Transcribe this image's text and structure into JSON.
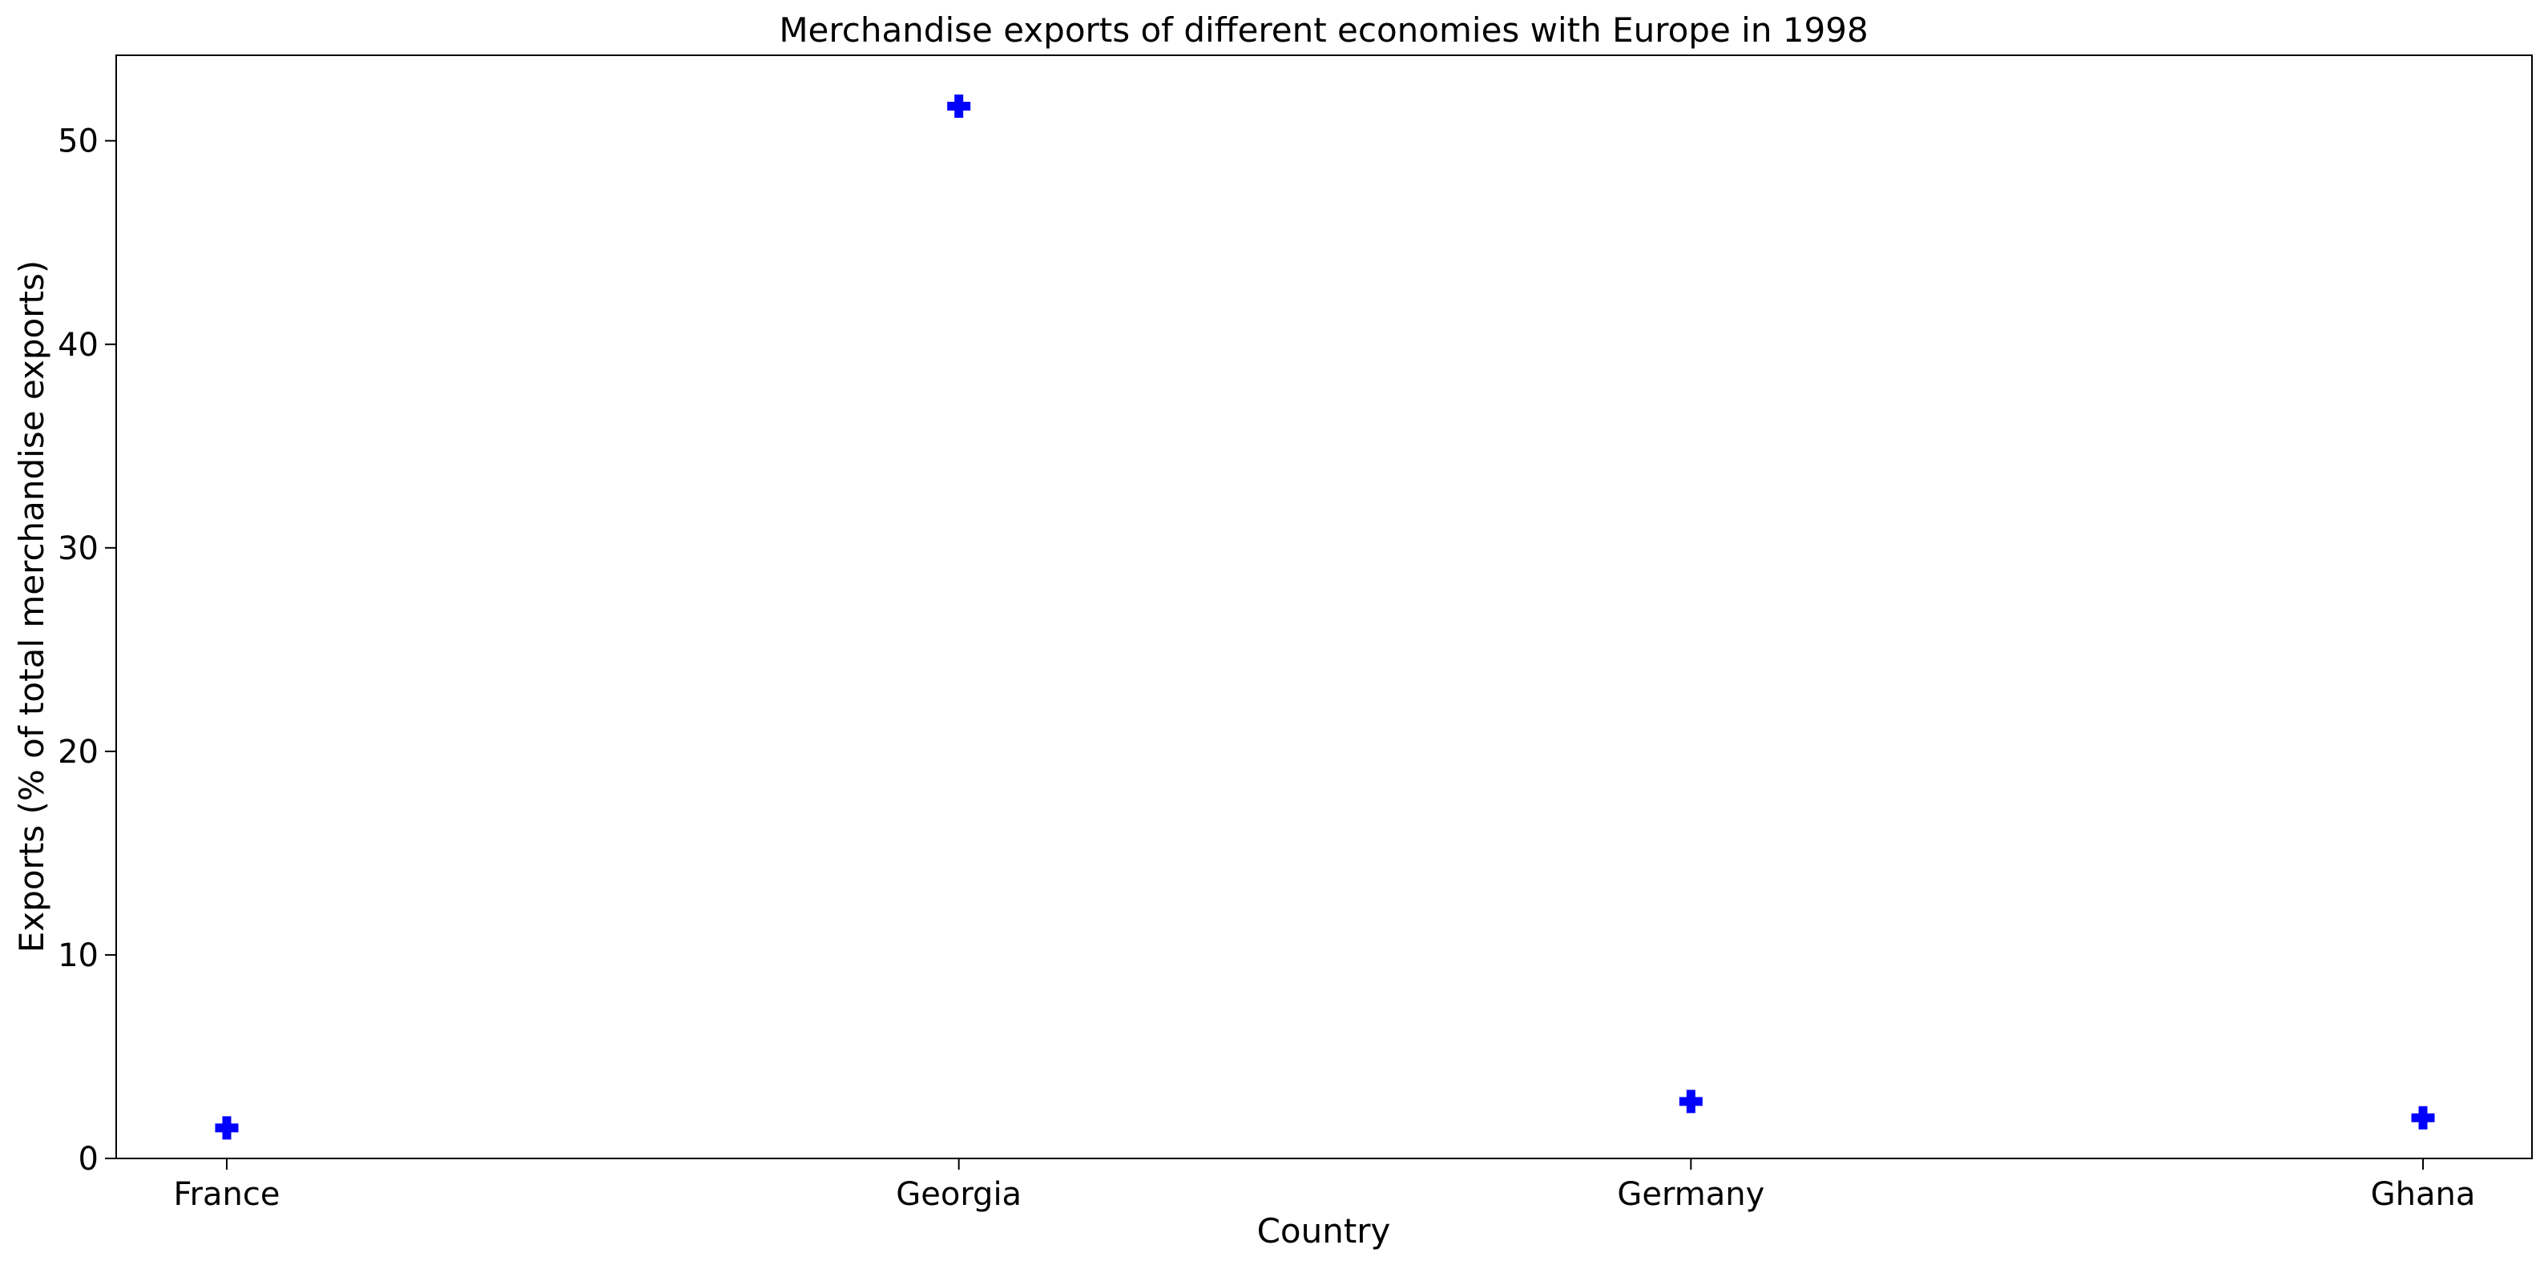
{
  "chart_data": {
    "type": "scatter",
    "title": "Merchandise exports of different economies with Europe in 1998",
    "xlabel": "Country",
    "ylabel": "Exports (% of total merchandise exports)",
    "categories": [
      "France",
      "Georgia",
      "Germany",
      "Ghana"
    ],
    "values": [
      1.5,
      51.7,
      2.8,
      2.0
    ],
    "ylim": [
      0,
      54.2
    ],
    "yticks": [
      0,
      10,
      20,
      30,
      40,
      50
    ],
    "yticklabels": [
      "0",
      "10",
      "20",
      "30",
      "40",
      "50"
    ],
    "marker": "plus-filled",
    "marker_color": "#0000ff",
    "grid": false,
    "legend": "none"
  }
}
